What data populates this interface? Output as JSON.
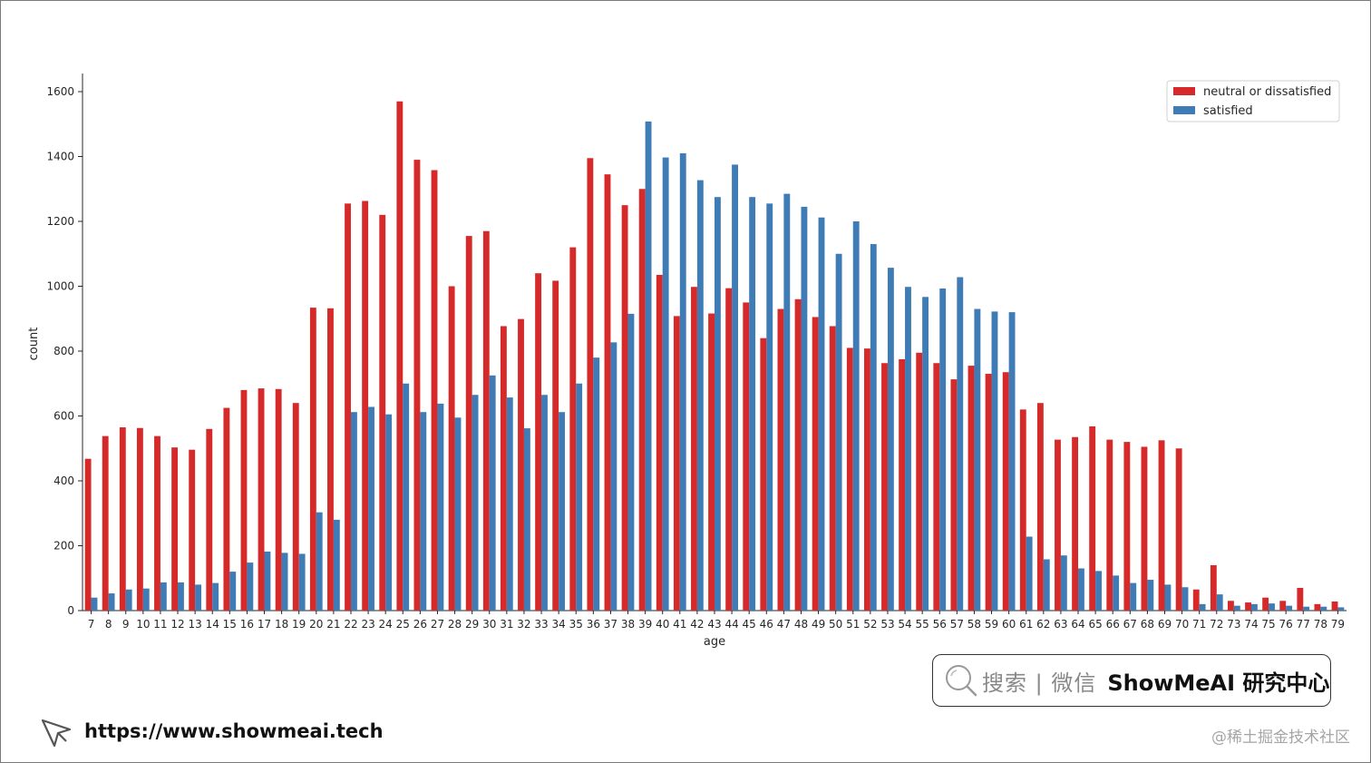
{
  "chart_data": {
    "type": "bar",
    "xlabel": "age",
    "ylabel": "count",
    "ylim": [
      0,
      1650
    ],
    "yticks": [
      0,
      200,
      400,
      600,
      800,
      1000,
      1200,
      1400,
      1600
    ],
    "legend_position": "top-right",
    "grid": false,
    "categories": [
      "7",
      "8",
      "9",
      "10",
      "11",
      "12",
      "13",
      "14",
      "15",
      "16",
      "17",
      "18",
      "19",
      "20",
      "21",
      "22",
      "23",
      "24",
      "25",
      "26",
      "27",
      "28",
      "29",
      "30",
      "31",
      "32",
      "33",
      "34",
      "35",
      "36",
      "37",
      "38",
      "39",
      "40",
      "41",
      "42",
      "43",
      "44",
      "45",
      "46",
      "47",
      "48",
      "49",
      "50",
      "51",
      "52",
      "53",
      "54",
      "55",
      "56",
      "57",
      "58",
      "59",
      "60",
      "61",
      "62",
      "63",
      "64",
      "65",
      "66",
      "67",
      "68",
      "69",
      "70",
      "71",
      "72",
      "73",
      "74",
      "75",
      "76",
      "77",
      "78",
      "79"
    ],
    "series": [
      {
        "name": "neutral or dissatisfied",
        "color": "#d62a2a",
        "values": [
          468,
          538,
          565,
          563,
          538,
          503,
          496,
          560,
          625,
          680,
          685,
          683,
          640,
          934,
          932,
          1255,
          1263,
          1220,
          1570,
          1390,
          1358,
          1000,
          1155,
          1170,
          877,
          899,
          1040,
          1017,
          1120,
          1395,
          1345,
          1250,
          1300,
          1035,
          908,
          998,
          916,
          994,
          950,
          840,
          930,
          960,
          905,
          877,
          810,
          808,
          763,
          775,
          795,
          763,
          713,
          755,
          730,
          735,
          620,
          640,
          527,
          535,
          568,
          527,
          520,
          505,
          525,
          500,
          65,
          140,
          30,
          25,
          40,
          30,
          70,
          20,
          28
        ]
      },
      {
        "name": "satisfied",
        "color": "#3f7bb5",
        "values": [
          40,
          53,
          65,
          68,
          87,
          87,
          80,
          85,
          120,
          148,
          182,
          178,
          175,
          303,
          280,
          612,
          628,
          605,
          700,
          612,
          638,
          595,
          665,
          725,
          657,
          562,
          665,
          612,
          700,
          780,
          827,
          915,
          1508,
          1397,
          1410,
          1327,
          1275,
          1375,
          1275,
          1255,
          1285,
          1245,
          1212,
          1100,
          1200,
          1130,
          1057,
          998,
          967,
          993,
          1028,
          930,
          922,
          920,
          228,
          158,
          170,
          130,
          122,
          108,
          85,
          95,
          80,
          72,
          20,
          50,
          15,
          20,
          22,
          15,
          12,
          12,
          10
        ]
      }
    ]
  },
  "search_box": {
    "search_label": "搜索 | 微信",
    "brand": "ShowMeAI 研究中心"
  },
  "footer": {
    "url": "https://www.showmeai.tech"
  },
  "watermark": "@稀土掘金技术社区"
}
